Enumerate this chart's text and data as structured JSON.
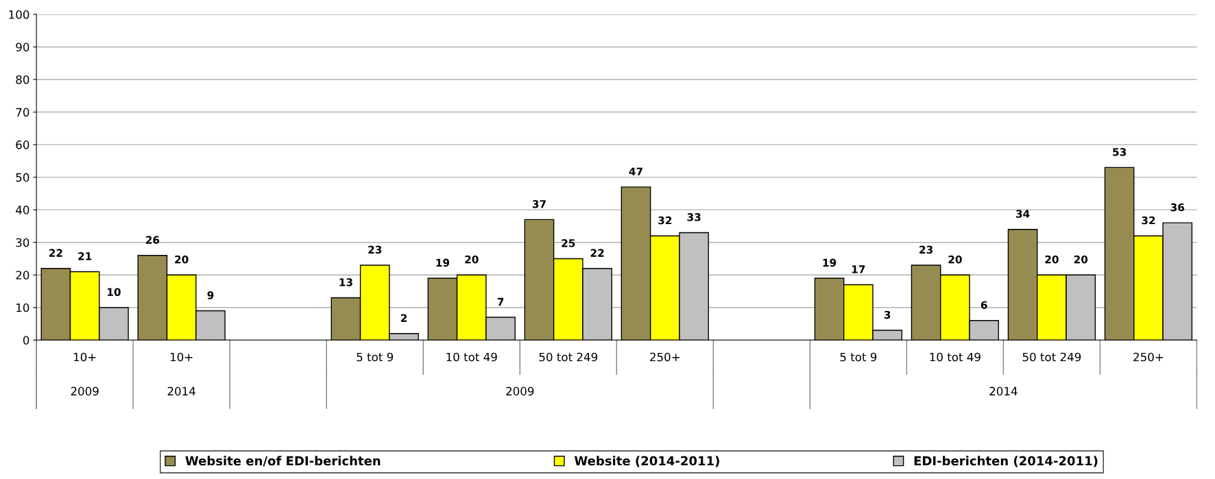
{
  "chart_data": {
    "type": "bar",
    "categories": [
      "10+",
      "10+",
      null,
      "5 tot 9",
      "10 tot 49",
      "50 tot 249",
      "250+",
      null,
      "5 tot 9",
      "10 tot 49",
      "50 tot 249",
      "250+"
    ],
    "series": [
      {
        "name": "Website en/of EDI-berichten",
        "color": "#968c52",
        "values": [
          22,
          26,
          null,
          13,
          19,
          37,
          47,
          null,
          19,
          23,
          34,
          53
        ]
      },
      {
        "name": "Website (2014-2011)",
        "color": "#ffff00",
        "values": [
          21,
          20,
          null,
          23,
          20,
          25,
          32,
          null,
          17,
          20,
          20,
          32
        ]
      },
      {
        "name": "EDI-berichten (2014-2011)",
        "color": "#c0c0c0",
        "values": [
          10,
          9,
          null,
          2,
          7,
          22,
          33,
          null,
          3,
          6,
          20,
          36
        ]
      }
    ],
    "annotations": [
      "2009",
      "2014",
      "2009",
      "2014"
    ],
    "ylim": [
      0,
      100
    ],
    "yticks": [
      0,
      10,
      20,
      30,
      40,
      50,
      60,
      70,
      80,
      90,
      100
    ],
    "grid": "y",
    "legend": "bottom",
    "data_labels": true
  }
}
